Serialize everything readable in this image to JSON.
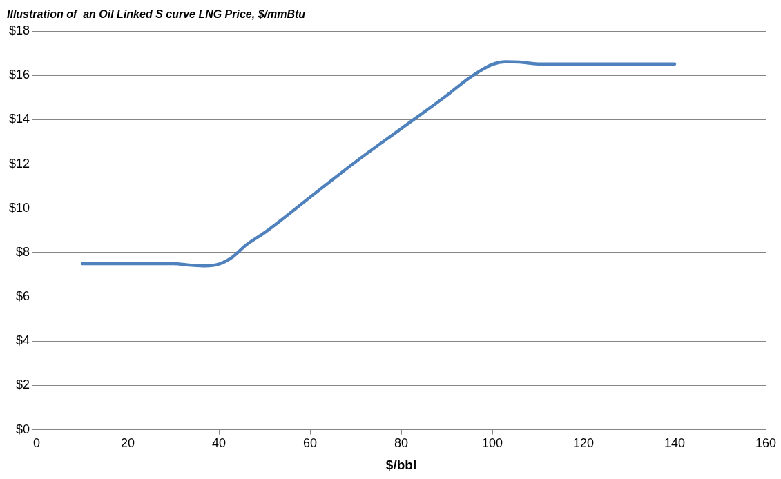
{
  "chart_data": {
    "type": "line",
    "title": "Illustration of  an Oil Linked S curve LNG Price, $/mmBtu",
    "xlabel": "$/bbl",
    "series": [
      {
        "color": "#4f81bd",
        "x": [
          10,
          20,
          30,
          34,
          37,
          40,
          43,
          46,
          50,
          60,
          70,
          80,
          90,
          95,
          100,
          103,
          106,
          110,
          120,
          130,
          140
        ],
        "values": [
          7.5,
          7.5,
          7.5,
          7.43,
          7.4,
          7.48,
          7.8,
          8.35,
          8.9,
          10.5,
          12.1,
          13.6,
          15.1,
          15.9,
          16.5,
          16.62,
          16.6,
          16.52,
          16.52,
          16.52,
          16.52
        ]
      }
    ],
    "xlim": [
      0,
      160
    ],
    "xticks": [
      0,
      20,
      40,
      60,
      80,
      100,
      120,
      140,
      160
    ],
    "ylim": [
      0,
      18
    ],
    "yticks": [
      {
        "value": 0,
        "label": "$0"
      },
      {
        "value": 2,
        "label": "$2"
      },
      {
        "value": 4,
        "label": "$4"
      },
      {
        "value": 6,
        "label": "$6"
      },
      {
        "value": 8,
        "label": "$8"
      },
      {
        "value": 10,
        "label": "$10"
      },
      {
        "value": 12,
        "label": "$12"
      },
      {
        "value": 14,
        "label": "$14"
      },
      {
        "value": 16,
        "label": "$16"
      },
      {
        "value": 18,
        "label": "$18"
      }
    ],
    "grid": "y",
    "legend": false,
    "marker": "none",
    "line_style": "solid"
  }
}
